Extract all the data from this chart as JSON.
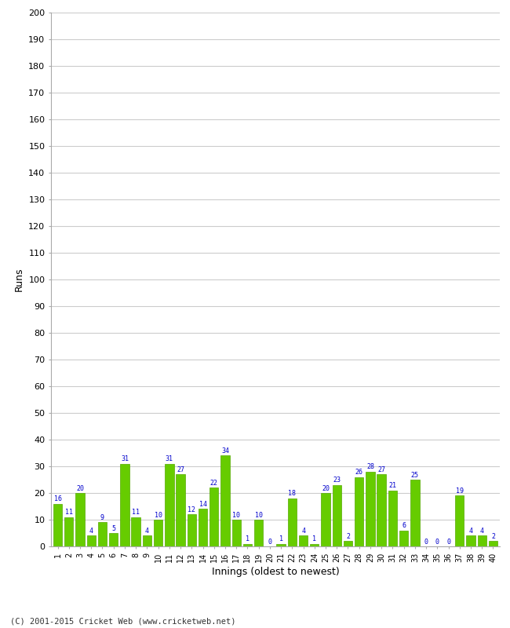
{
  "xlabel": "Innings (oldest to newest)",
  "ylabel": "Runs",
  "ylim": [
    0,
    200
  ],
  "yticks": [
    0,
    10,
    20,
    30,
    40,
    50,
    60,
    70,
    80,
    90,
    100,
    110,
    120,
    130,
    140,
    150,
    160,
    170,
    180,
    190,
    200
  ],
  "innings_labels": [
    "1",
    "2",
    "3",
    "4",
    "5",
    "6",
    "7",
    "8",
    "9",
    "10",
    "11",
    "12",
    "13",
    "14",
    "15",
    "16",
    "17",
    "18",
    "19",
    "20",
    "21",
    "22",
    "23",
    "24",
    "25",
    "26",
    "27",
    "28",
    "29",
    "30",
    "31",
    "32",
    "33",
    "34",
    "35",
    "36",
    "37",
    "38",
    "39",
    "40"
  ],
  "values": [
    16,
    11,
    20,
    4,
    9,
    5,
    31,
    11,
    4,
    10,
    31,
    27,
    12,
    14,
    22,
    34,
    10,
    1,
    10,
    0,
    1,
    18,
    4,
    1,
    20,
    23,
    2,
    26,
    28,
    27,
    21,
    6,
    25,
    0,
    0,
    0,
    19,
    4,
    4,
    2
  ],
  "bar_color": "#66cc00",
  "bar_edge_color": "#55aa00",
  "label_color": "#0000cc",
  "background_color": "#ffffff",
  "grid_color": "#cccccc",
  "footer": "(C) 2001-2015 Cricket Web (www.cricketweb.net)"
}
